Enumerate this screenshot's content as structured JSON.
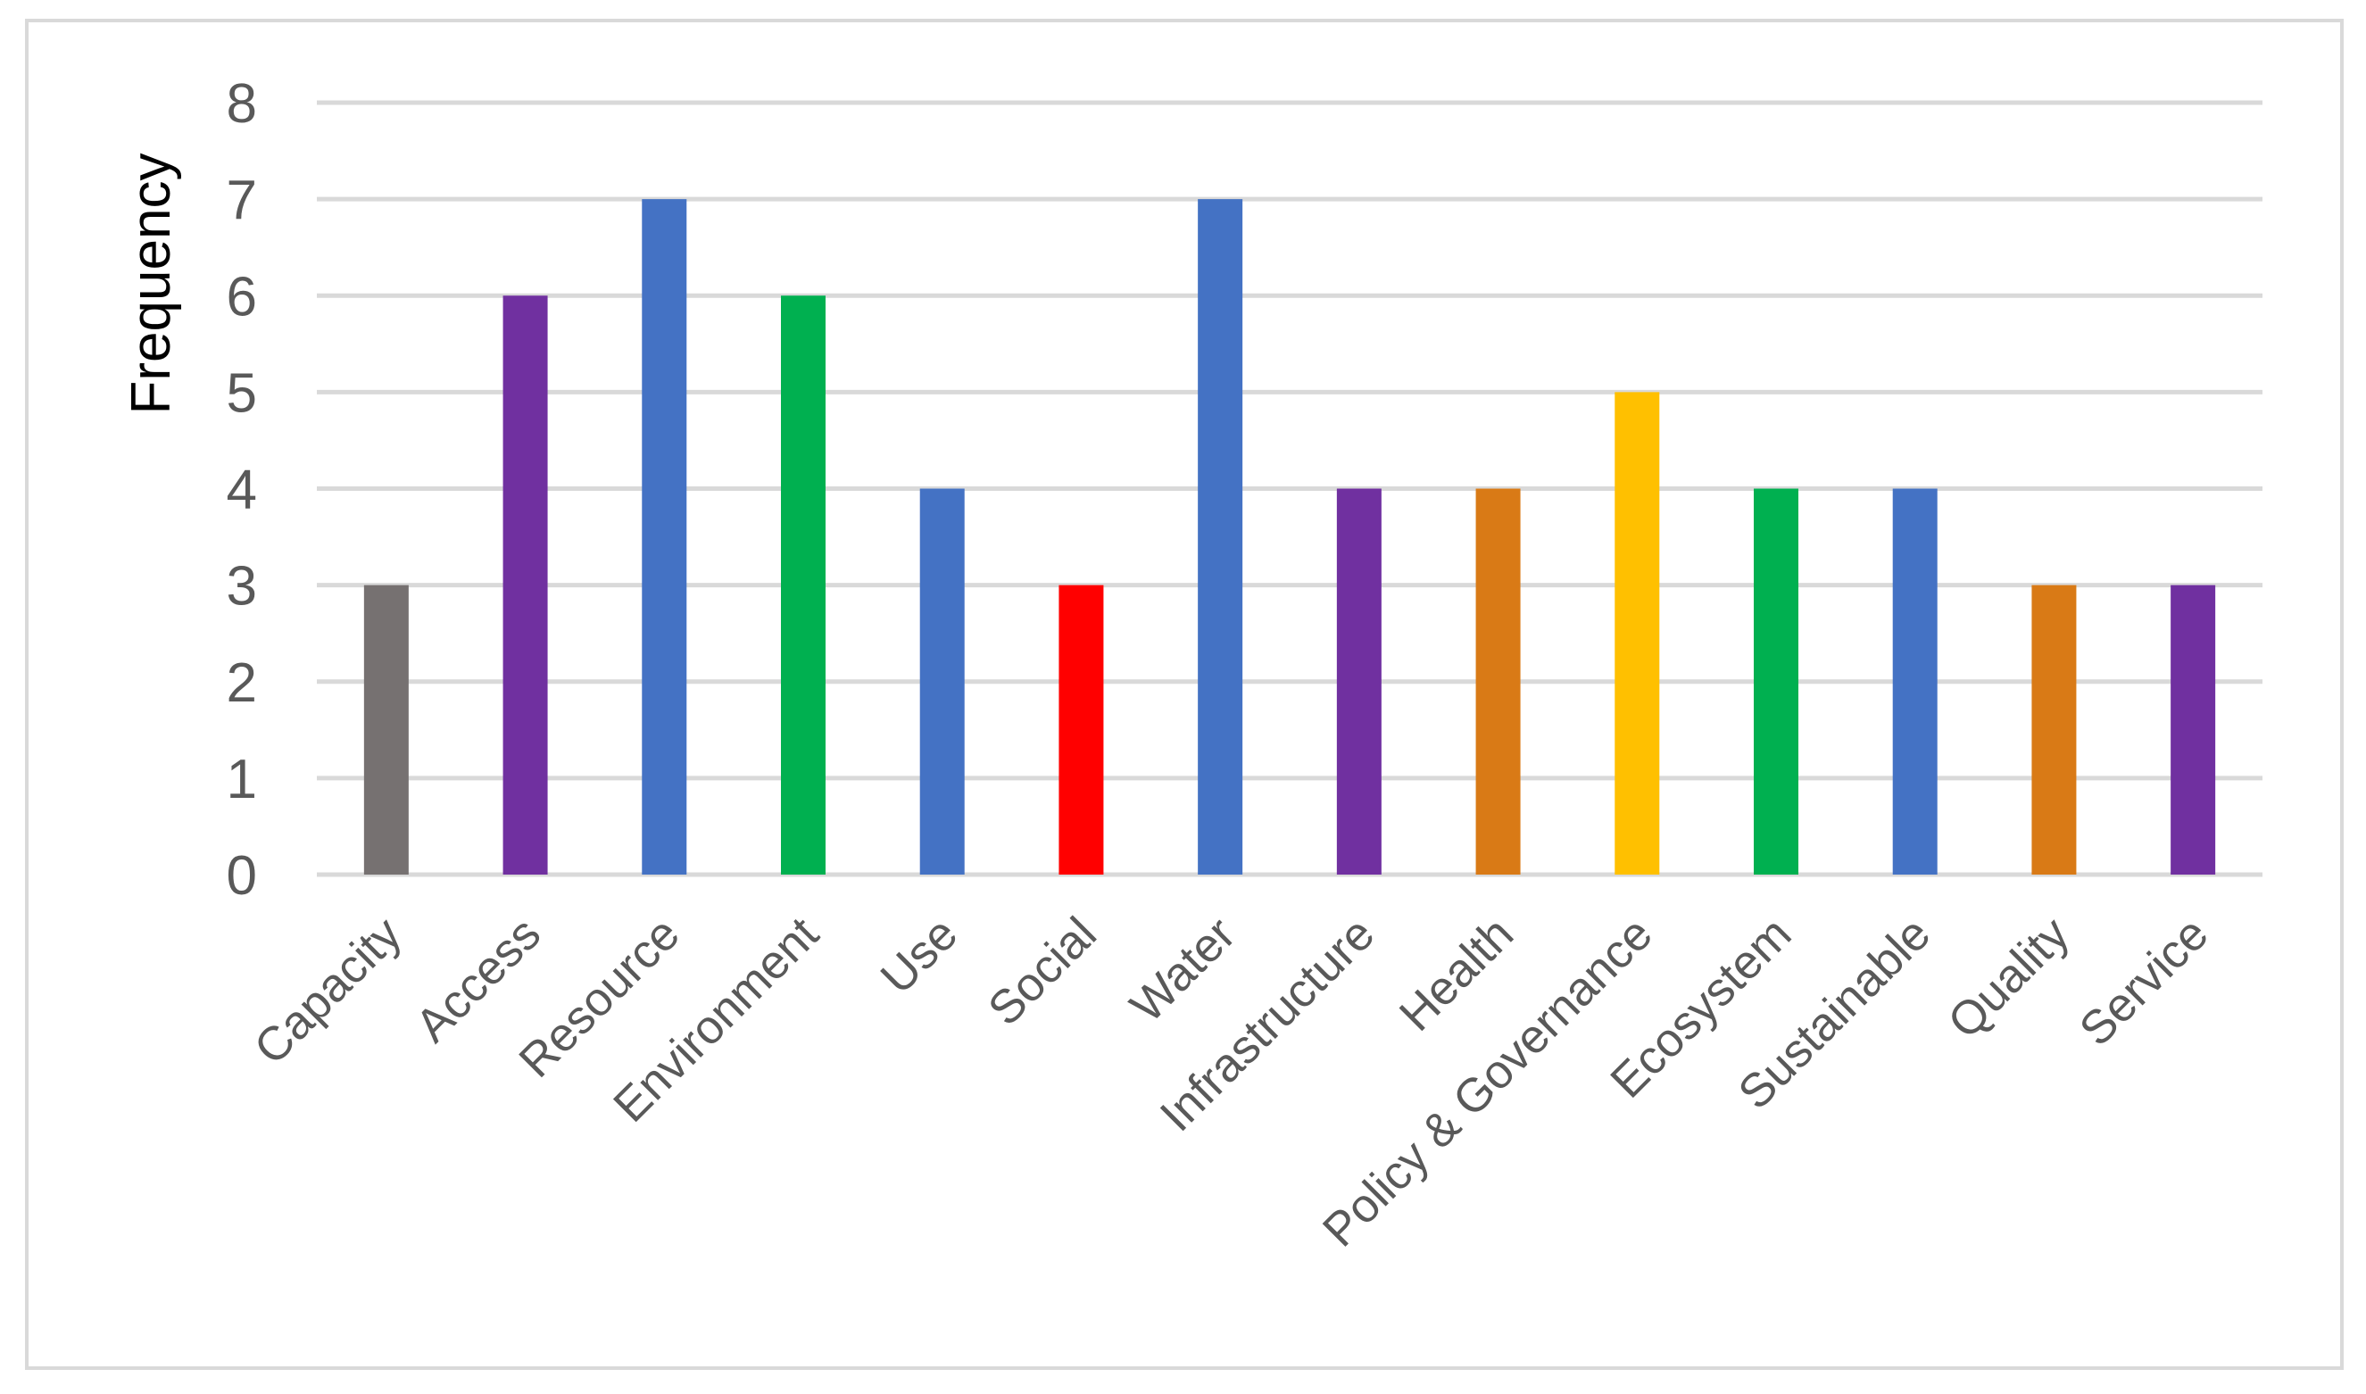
{
  "chart_data": {
    "type": "bar",
    "title": "",
    "xlabel": "",
    "ylabel": "Frequency",
    "ylim": [
      0,
      8
    ],
    "yticks": [
      "0",
      "1",
      "2",
      "3",
      "4",
      "5",
      "6",
      "7",
      "8"
    ],
    "grid": true,
    "legend": "none",
    "categories": [
      "Capacity",
      "Access",
      "Resource",
      "Environment",
      "Use",
      "Social",
      "Water",
      "Infrastructure",
      "Health",
      "Policy & Governance",
      "Ecosystem",
      "Sustainable",
      "Quality",
      "Service"
    ],
    "values": [
      3,
      6,
      7,
      6,
      4,
      3,
      7,
      4,
      4,
      5,
      4,
      4,
      3,
      3
    ],
    "colors": [
      "#767171",
      "#7030A0",
      "#4472C4",
      "#00B050",
      "#4472C4",
      "#FF0000",
      "#4472C4",
      "#7030A0",
      "#D97A16",
      "#FFC000",
      "#00B050",
      "#4472C4",
      "#D97A16",
      "#7030A0"
    ]
  }
}
